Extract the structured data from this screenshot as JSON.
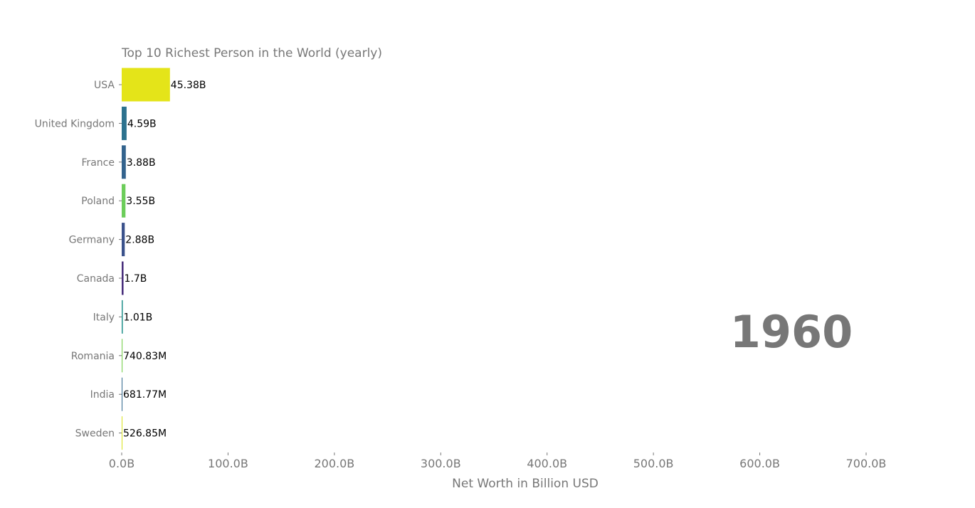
{
  "chart_data": {
    "type": "bar",
    "orientation": "horizontal",
    "title": "Top 10 Richest Person in the World (yearly)",
    "xlabel": "Net Worth in Billion USD",
    "ylabel": "",
    "xlim": [
      0,
      700
    ],
    "x_ticks": [
      0,
      100,
      200,
      300,
      400,
      500,
      600,
      700
    ],
    "x_tick_labels": [
      "0.0B",
      "100.0B",
      "200.0B",
      "300.0B",
      "400.0B",
      "500.0B",
      "600.0B",
      "700.0B"
    ],
    "year": "1960",
    "grid": false,
    "bars": [
      {
        "category": "USA",
        "value": 45.38,
        "label": "45.38B",
        "color": "#e4e419"
      },
      {
        "category": "United Kingdom",
        "value": 4.59,
        "label": "4.59B",
        "color": "#2c728e"
      },
      {
        "category": "France",
        "value": 3.88,
        "label": "3.88B",
        "color": "#33638d"
      },
      {
        "category": "Poland",
        "value": 3.55,
        "label": "3.55B",
        "color": "#6ccd5a"
      },
      {
        "category": "Germany",
        "value": 2.88,
        "label": "2.88B",
        "color": "#3b528b"
      },
      {
        "category": "Canada",
        "value": 1.7,
        "label": "1.7B",
        "color": "#472d7b"
      },
      {
        "category": "Italy",
        "value": 1.01,
        "label": "1.01B",
        "color": "#21918c"
      },
      {
        "category": "Romania",
        "value": 0.74083,
        "label": "740.83M",
        "color": "#7ad151"
      },
      {
        "category": "India",
        "value": 0.68177,
        "label": "681.77M",
        "color": "#31688e"
      },
      {
        "category": "Sweden",
        "value": 0.52685,
        "label": "526.85M",
        "color": "#d8e219"
      }
    ]
  }
}
